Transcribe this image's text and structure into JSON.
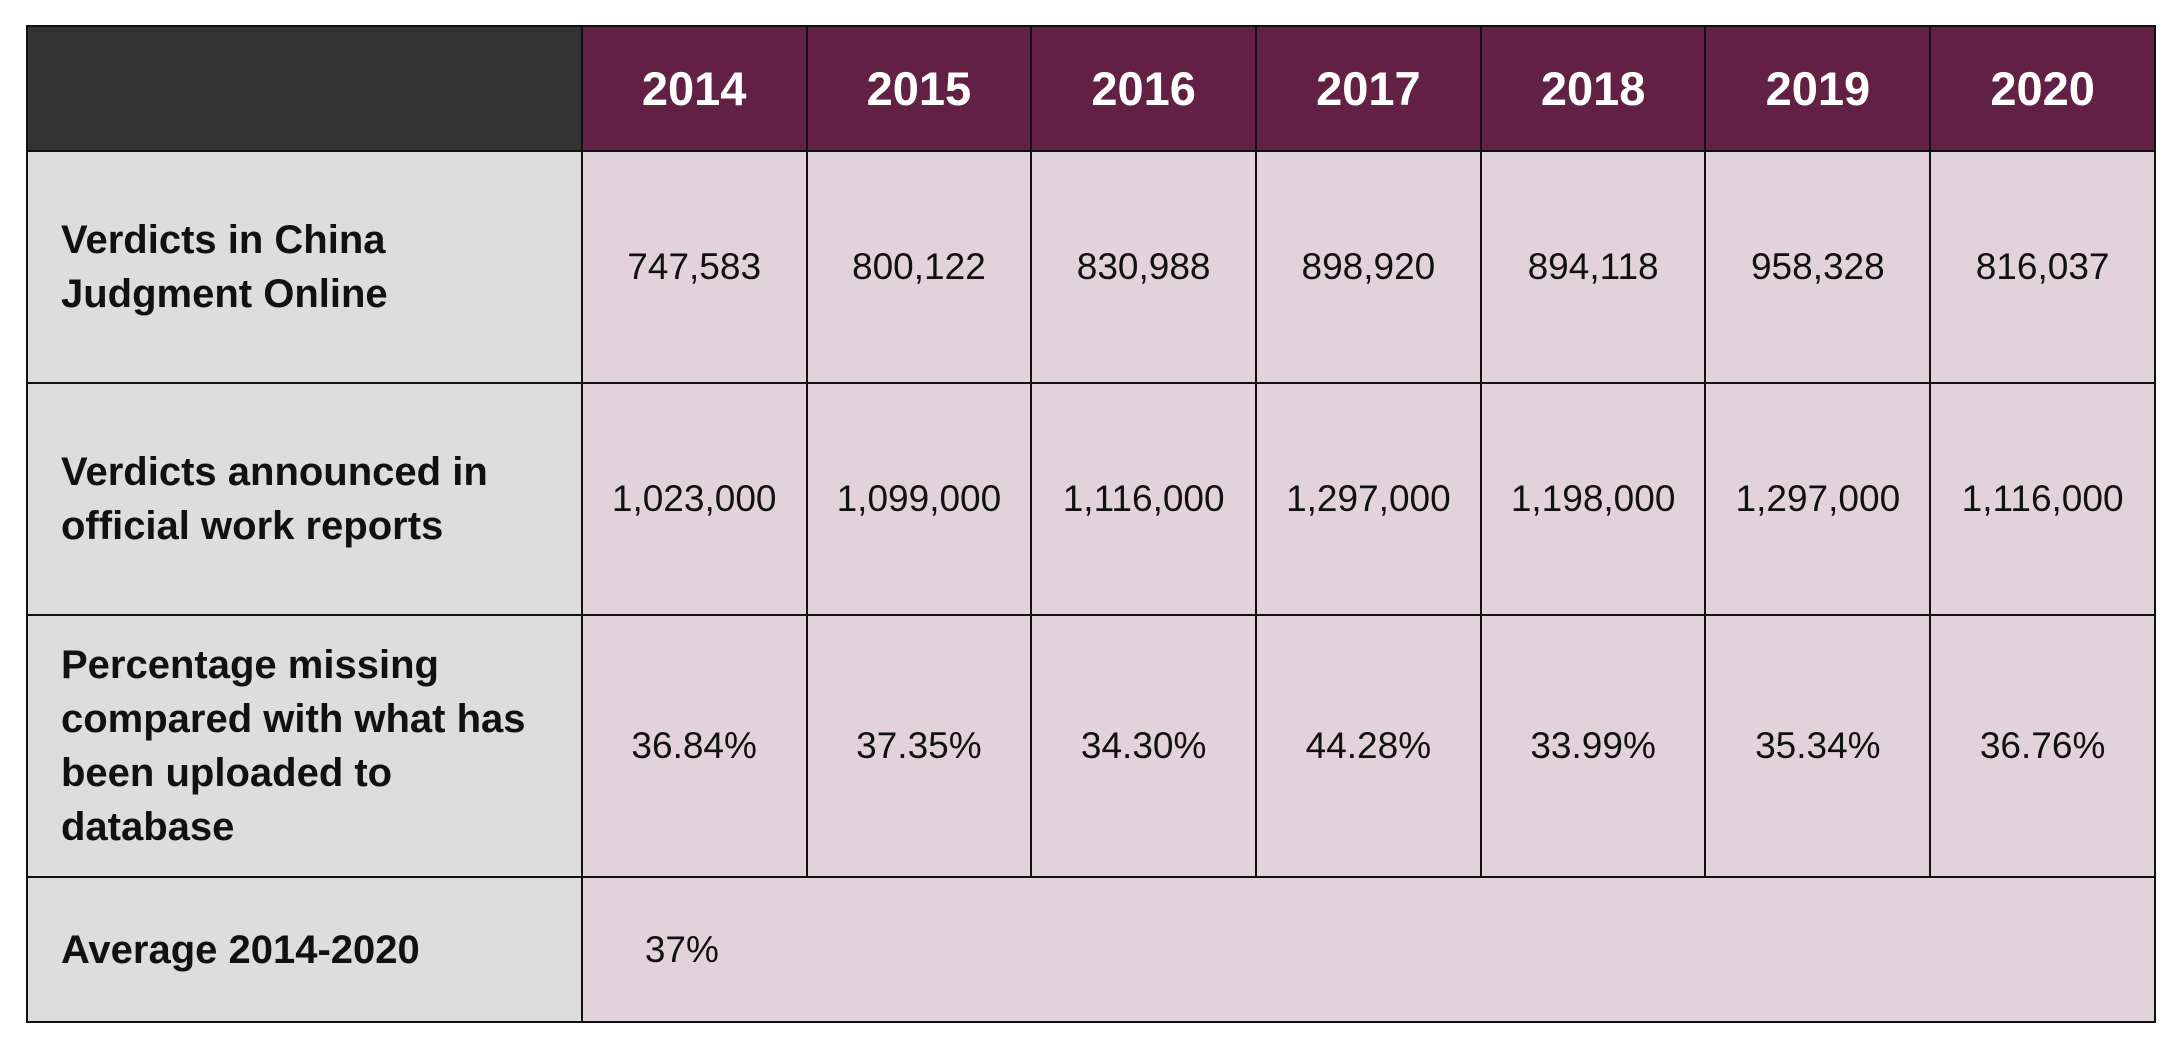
{
  "colors": {
    "header_corner": "#333333",
    "header_year": "#632045",
    "label_bg": "#dddddd",
    "cell_bg": "#e2d3db",
    "border": "#111111"
  },
  "chart_data": {
    "type": "table",
    "columns": [
      "2014",
      "2015",
      "2016",
      "2017",
      "2018",
      "2019",
      "2020"
    ],
    "rows": [
      {
        "label": "Verdicts in China Judgment Online",
        "values": [
          "747,583",
          "800,122",
          "830,988",
          "898,920",
          "894,118",
          "958,328",
          "816,037"
        ]
      },
      {
        "label": "Verdicts announced in official work reports",
        "values": [
          "1,023,000",
          "1,099,000",
          "1,116,000",
          "1,297,000",
          "1,198,000",
          "1,297,000",
          "1,116,000"
        ]
      },
      {
        "label": "Percentage missing compared with what has been uploaded to database",
        "values": [
          "36.84%",
          "37.35%",
          "34.30%",
          "44.28%",
          "33.99%",
          "35.34%",
          "36.76%"
        ]
      }
    ],
    "summary": {
      "label": "Average 2014-2020",
      "value": "37%"
    }
  }
}
